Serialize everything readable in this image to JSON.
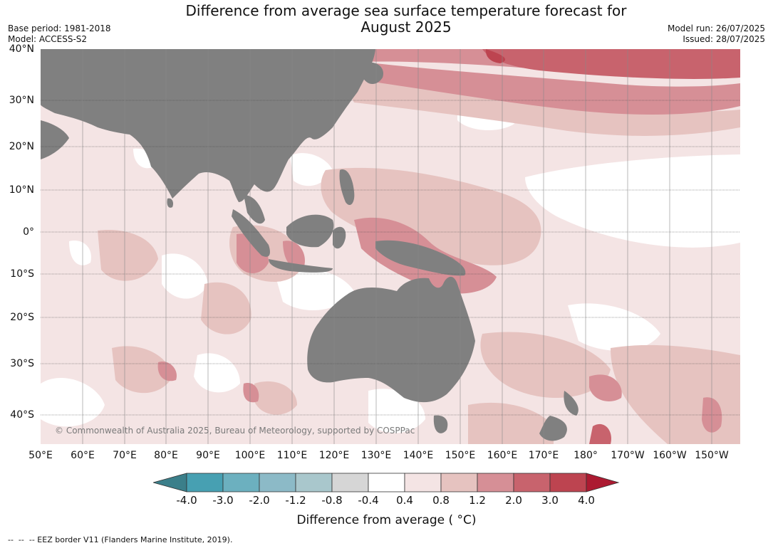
{
  "title_line1": "Difference from average sea surface temperature forecast for",
  "title_line2": "August 2025",
  "meta_left": {
    "base_period": "Base period: 1981-2018",
    "model": "Model: ACCESS-S2"
  },
  "meta_right": {
    "model_run": "Model run: 26/07/2025",
    "issued": "Issued: 28/07/2025"
  },
  "map": {
    "lat_labels": [
      "40°N",
      "30°N",
      "20°N",
      "10°N",
      "0°",
      "10°S",
      "20°S",
      "30°S",
      "40°S"
    ],
    "lon_labels": [
      "50°E",
      "60°E",
      "70°E",
      "80°E",
      "90°E",
      "100°E",
      "110°E",
      "120°E",
      "130°E",
      "140°E",
      "150°E",
      "160°E",
      "170°E",
      "180°",
      "170°W",
      "160°W",
      "150°W"
    ],
    "copyright": "© Commonwealth of Australia 2025, Bureau of Meteorology, supported by COSPPac",
    "land_color": "#808080"
  },
  "colorbar": {
    "label": "Difference from average ( °C)",
    "ticks": [
      "-4.0",
      "-3.0",
      "-2.0",
      "-1.2",
      "-0.8",
      "-0.4",
      "0.4",
      "0.8",
      "1.2",
      "2.0",
      "3.0",
      "4.0"
    ],
    "colors": {
      "below": "#3b7f8a",
      "bins": [
        "#47a0b2",
        "#6cb0bf",
        "#8cbac7",
        "#a9c7cc",
        "#d6d6d6",
        "#ffffff",
        "#f4e4e4",
        "#e6c3c0",
        "#d68f96",
        "#c8636d",
        "#bd4450"
      ],
      "above": "#ac1a31"
    }
  },
  "footnote": "--  --  -- EEZ border V11 (Flanders Marine Institute, 2019)."
}
